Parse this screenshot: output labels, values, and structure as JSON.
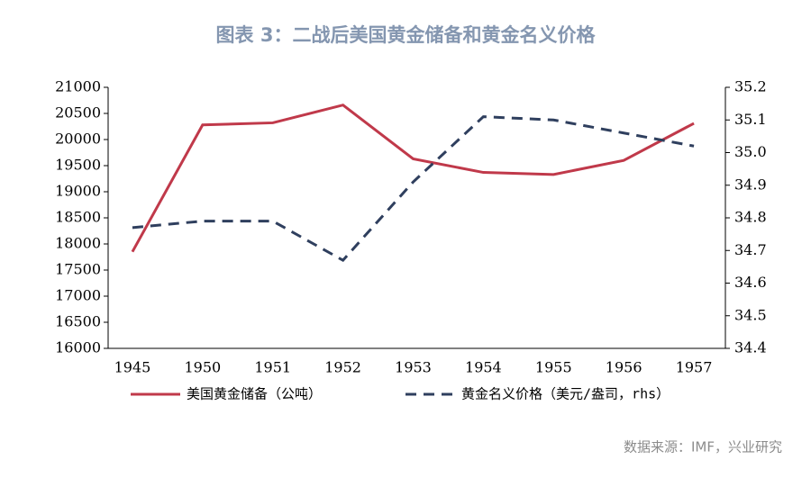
{
  "chart_data": {
    "type": "line",
    "title": "图表 3：二战后美国黄金储备和黄金名义价格",
    "source": "数据来源：IMF，兴业研究",
    "categories": [
      "1945",
      "1950",
      "1951",
      "1952",
      "1953",
      "1954",
      "1955",
      "1956",
      "1957"
    ],
    "series": [
      {
        "name": "美国黄金储备（公吨）",
        "color": "#c0394a",
        "values": [
          17850,
          20280,
          20320,
          20660,
          19630,
          19370,
          19330,
          19600,
          20310
        ]
      },
      {
        "name": "黄金名义价格（美元/盎司，rhs）",
        "color": "#2f3f5e",
        "axis": "y2",
        "values": [
          34.77,
          34.79,
          34.79,
          34.67,
          34.91,
          35.11,
          35.1,
          35.06,
          35.02
        ]
      }
    ],
    "ylim": [
      16000,
      21000
    ],
    "yticks": [
      16000,
      16500,
      17000,
      17500,
      18000,
      18500,
      19000,
      19500,
      20000,
      20500,
      21000
    ],
    "y2lim": [
      34.4,
      35.2
    ],
    "y2ticks": [
      34.4,
      34.5,
      34.6,
      34.7,
      34.8,
      34.9,
      {
        "value": 35,
        "label": "35.0"
      },
      35.1,
      35.2
    ],
    "grid": false,
    "legend": "bottom"
  }
}
